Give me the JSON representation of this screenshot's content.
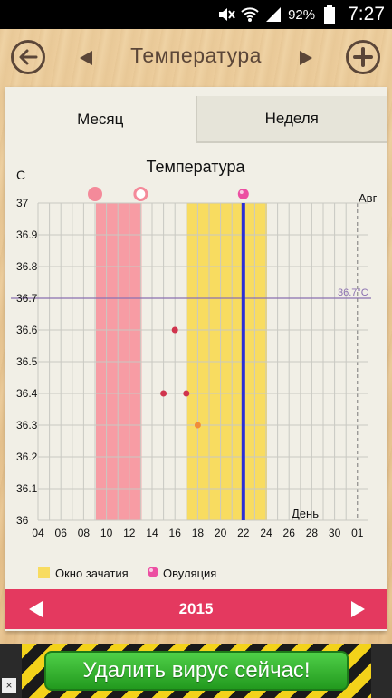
{
  "status_bar": {
    "battery_pct": "92%",
    "time": "7:27",
    "icons": [
      "mute-icon",
      "wifi-icon",
      "signal-icon",
      "battery-icon"
    ]
  },
  "header": {
    "title": "Температура",
    "back_icon": "arrow-left-icon",
    "add_icon": "plus-icon"
  },
  "tabs": [
    {
      "label": "Месяц",
      "active": true
    },
    {
      "label": "Неделя",
      "active": false
    }
  ],
  "chart_data": {
    "type": "scatter",
    "title": "Температура",
    "ylabel": "С",
    "xlabel": "День",
    "month_label": "Авг",
    "ylim": [
      36,
      37
    ],
    "yticks": [
      "36",
      "36.1",
      "36.2",
      "36.3",
      "36.4",
      "36.5",
      "36.6",
      "36.7",
      "36.8",
      "36.9",
      "37"
    ],
    "xticks": [
      "04",
      "06",
      "08",
      "10",
      "12",
      "14",
      "16",
      "18",
      "20",
      "22",
      "24",
      "26",
      "28",
      "30",
      "01"
    ],
    "x_days": [
      4,
      5,
      6,
      7,
      8,
      9,
      10,
      11,
      12,
      13,
      14,
      15,
      16,
      17,
      18,
      19,
      20,
      21,
      22,
      23,
      24,
      25,
      26,
      27,
      28,
      29,
      30,
      31,
      32
    ],
    "reference_line": {
      "value": 36.7,
      "label": "36.7°C",
      "color": "#8a6fb0"
    },
    "period_band": {
      "from": 9,
      "to": 13,
      "color": "#f79ca4"
    },
    "fertile_window": {
      "from": 17,
      "to": 24,
      "color": "#f8dc60"
    },
    "ovulation_day": 22,
    "ovulation_line_color": "#2b2fd6",
    "points": [
      {
        "x": 15,
        "y": 36.4,
        "color": "#d0344d"
      },
      {
        "x": 16,
        "y": 36.6,
        "color": "#d0344d"
      },
      {
        "x": 17,
        "y": 36.4,
        "color": "#d0344d"
      },
      {
        "x": 18,
        "y": 36.3,
        "color": "#f08c3a"
      }
    ],
    "top_markers": [
      {
        "x": 9,
        "type": "filled",
        "color": "#f48a9a"
      },
      {
        "x": 13,
        "type": "ring",
        "color": "#f48a9a"
      },
      {
        "x": 22,
        "type": "ovulation",
        "color": "#ec4fa2"
      }
    ],
    "legend": [
      {
        "label": "Окно зачатия",
        "color": "#f8dc60",
        "icon": "square"
      },
      {
        "label": "Овуляция",
        "color": "#ec4fa2",
        "icon": "ovulation-icon"
      }
    ]
  },
  "year_bar": {
    "year": "2015",
    "color": "#e4395f"
  },
  "ad": {
    "label": "Удалить вирус сейчас!"
  }
}
